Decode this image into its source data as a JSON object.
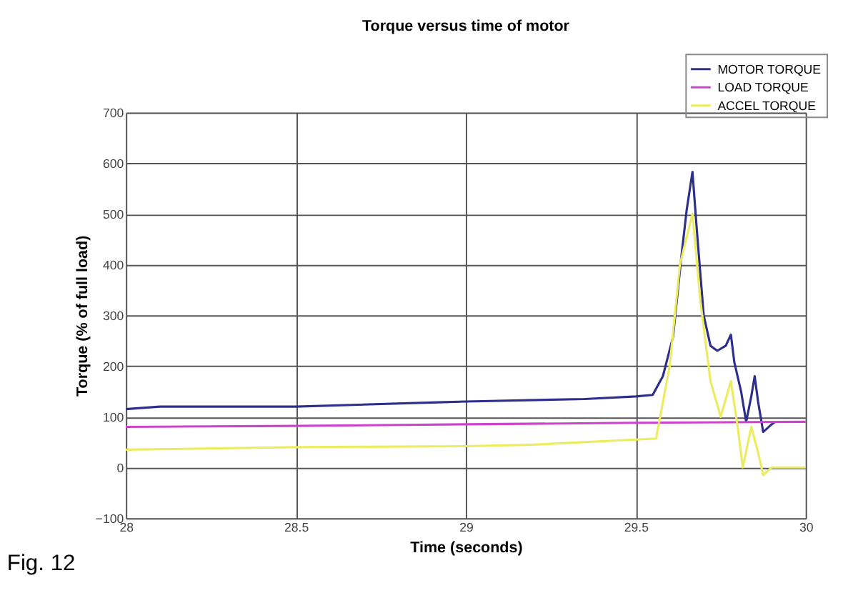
{
  "chart_data": {
    "type": "line",
    "title": "Torque versus time of motor",
    "xlabel": "Time (seconds)",
    "ylabel": "Torque (% of full load)",
    "xlim": [
      28,
      30
    ],
    "xticks": [
      28,
      28.5,
      29,
      29.5,
      30
    ],
    "ylim": [
      -100,
      700
    ],
    "yticks": [
      -100,
      0,
      100,
      200,
      300,
      400,
      500,
      600,
      700
    ],
    "grid": true,
    "legend": "top right",
    "annotations": [
      "Fig. 12"
    ],
    "series": [
      {
        "name": "MOTOR TORQUE",
        "color": "#2e2e8c",
        "x": [
          28,
          28.1,
          28.5,
          28.9,
          29,
          29.35,
          29.5,
          29.55,
          29.58,
          29.61,
          29.635,
          29.65,
          29.667,
          29.68,
          29.7,
          29.72,
          29.74,
          29.765,
          29.78,
          29.79,
          29.81,
          29.825,
          29.84,
          29.85,
          29.86,
          29.875,
          29.9,
          29.91
        ],
        "values": [
          115,
          120,
          120,
          128,
          130,
          135,
          140,
          143,
          180,
          258,
          420,
          508,
          583,
          467,
          300,
          240,
          230,
          240,
          262,
          208,
          150,
          90,
          140,
          180,
          130,
          70,
          85,
          90
        ]
      },
      {
        "name": "LOAD TORQUE",
        "color": "#cc44cc",
        "x": [
          28,
          28.5,
          29,
          29.5,
          30
        ],
        "values": [
          80,
          82,
          85,
          88,
          90
        ]
      },
      {
        "name": "ACCEL TORQUE",
        "color": "#ecec60",
        "x": [
          28,
          28.5,
          29,
          29.2,
          29.5,
          29.56,
          29.6,
          29.63,
          29.667,
          29.69,
          29.72,
          29.75,
          29.78,
          29.8,
          29.815,
          29.84,
          29.86,
          29.875,
          29.9,
          30
        ],
        "values": [
          35,
          40,
          42,
          45,
          55,
          57,
          200,
          400,
          500,
          330,
          170,
          100,
          170,
          80,
          0,
          80,
          30,
          -15,
          0,
          0
        ]
      }
    ]
  }
}
